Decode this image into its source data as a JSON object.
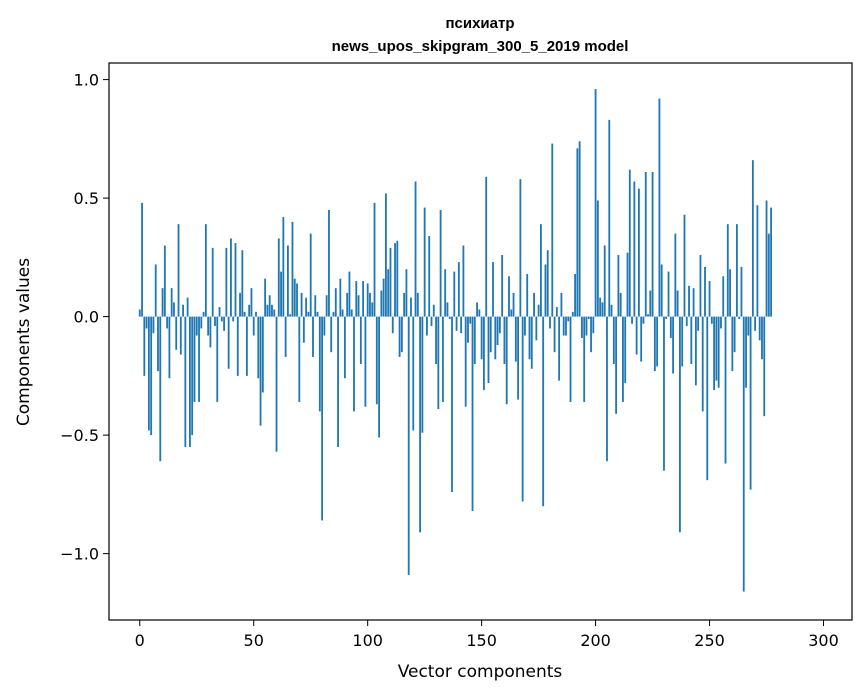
{
  "chart_data": {
    "type": "bar",
    "title": "психиатр",
    "subtitle": "news_upos_skipgram_300_5_2019 model",
    "xlabel": "Vector components",
    "ylabel": "Components values",
    "xlim": [
      -13.5,
      312.5
    ],
    "ylim": [
      -1.28,
      1.07
    ],
    "xticks": [
      0,
      50,
      100,
      150,
      200,
      250,
      300
    ],
    "xtick_labels": [
      "0",
      "50",
      "100",
      "150",
      "200",
      "250",
      "300"
    ],
    "yticks": [
      -1.0,
      -0.5,
      0.0,
      0.5,
      1.0
    ],
    "ytick_labels": [
      "−1.0",
      "−0.5",
      "0.0",
      "0.5",
      "1.0"
    ],
    "grid": false,
    "bar_color": "#1f77b4",
    "values": [
      0.03,
      0.48,
      -0.25,
      -0.05,
      -0.48,
      -0.5,
      -0.07,
      0.22,
      -0.23,
      -0.61,
      0.12,
      0.3,
      -0.05,
      -0.26,
      0.12,
      0.06,
      -0.14,
      0.39,
      -0.16,
      0.05,
      -0.55,
      0.08,
      -0.55,
      -0.5,
      -0.36,
      -0.08,
      -0.36,
      -0.05,
      0.02,
      0.39,
      -0.08,
      -0.13,
      0.29,
      -0.04,
      -0.36,
      0.04,
      -0.02,
      -0.06,
      0.29,
      -0.22,
      0.33,
      -0.02,
      0.31,
      -0.25,
      0.1,
      0.28,
      0.02,
      -0.25,
      0.05,
      0.12,
      -0.08,
      0.02,
      -0.26,
      -0.46,
      -0.32,
      0.16,
      0.05,
      0.09,
      0.05,
      0.03,
      -0.57,
      0.33,
      0.19,
      0.42,
      -0.17,
      0.3,
      0.01,
      0.4,
      0.16,
      0.14,
      -0.36,
      0.1,
      -0.11,
      0.08,
      0.02,
      0.35,
      -0.17,
      0.09,
      0.02,
      -0.4,
      -0.86,
      -0.08,
      0.09,
      0.45,
      -0.15,
      0.02,
      0.12,
      -0.55,
      0.16,
      0.03,
      -0.26,
      0.1,
      0.19,
      0.03,
      -0.4,
      0.15,
      0.09,
      -0.2,
      0.15,
      -0.38,
      0.14,
      0.1,
      0.06,
      0.48,
      -0.37,
      -0.51,
      0.11,
      0.16,
      0.52,
      0.2,
      0.29,
      -0.07,
      0.31,
      0.32,
      -0.17,
      -0.15,
      0.1,
      0.2,
      -1.09,
      0.08,
      -0.48,
      0.57,
      0.1,
      -0.91,
      -0.49,
      0.46,
      -0.08,
      0.34,
      -0.04,
      0.05,
      -0.2,
      -0.39,
      0.45,
      -0.36,
      0.2,
      0.06,
      -0.01,
      -0.74,
      0.19,
      -0.06,
      0.23,
      -0.07,
      0.3,
      -0.38,
      -0.11,
      -0.03,
      -0.82,
      -0.2,
      0.06,
      0.03,
      -0.18,
      -0.31,
      0.59,
      -0.28,
      -0.15,
      0.23,
      -0.18,
      -0.12,
      -0.07,
      0.26,
      -0.2,
      -0.37,
      0.17,
      0.03,
      0.1,
      -0.19,
      -0.35,
      0.58,
      -0.78,
      -0.08,
      0.18,
      -0.18,
      -0.22,
      0.1,
      -0.1,
      0.05,
      0.39,
      -0.8,
      0.22,
      0.28,
      -0.05,
      0.73,
      -0.15,
      0.04,
      -0.27,
      0.1,
      -0.08,
      -0.08,
      -0.02,
      -0.36,
      0.02,
      0.18,
      0.71,
      0.74,
      -0.09,
      -0.36,
      -0.08,
      -0.01,
      -0.15,
      -0.07,
      0.96,
      0.49,
      0.08,
      0.06,
      0.3,
      -0.61,
      0.83,
      0.05,
      -0.2,
      -0.41,
      0.26,
      0.1,
      -0.36,
      -0.28,
      0.27,
      0.62,
      -0.03,
      0.57,
      -0.16,
      0.54,
      -0.19,
      -0.03,
      0.61,
      0.01,
      0.11,
      0.61,
      -0.23,
      -0.21,
      0.92,
      0.22,
      -0.65,
      -0.01,
      0.19,
      -0.09,
      -0.24,
      0.35,
      0.11,
      -0.91,
      -0.21,
      0.43,
      -0.04,
      0.13,
      -0.2,
      0.12,
      -0.29,
      -0.06,
      0.26,
      -0.4,
      0.21,
      -0.69,
      0.15,
      -0.03,
      -0.31,
      -0.27,
      -0.3,
      -0.05,
      0.17,
      -0.62,
      0.39,
      0.2,
      -0.23,
      -0.15,
      0.39,
      -0.01,
      0.21,
      -1.16,
      -0.3,
      -0.08,
      -0.73,
      0.66,
      -0.06,
      0.47,
      -0.1,
      -0.18,
      -0.42,
      0.49,
      0.35,
      0.46
    ]
  }
}
